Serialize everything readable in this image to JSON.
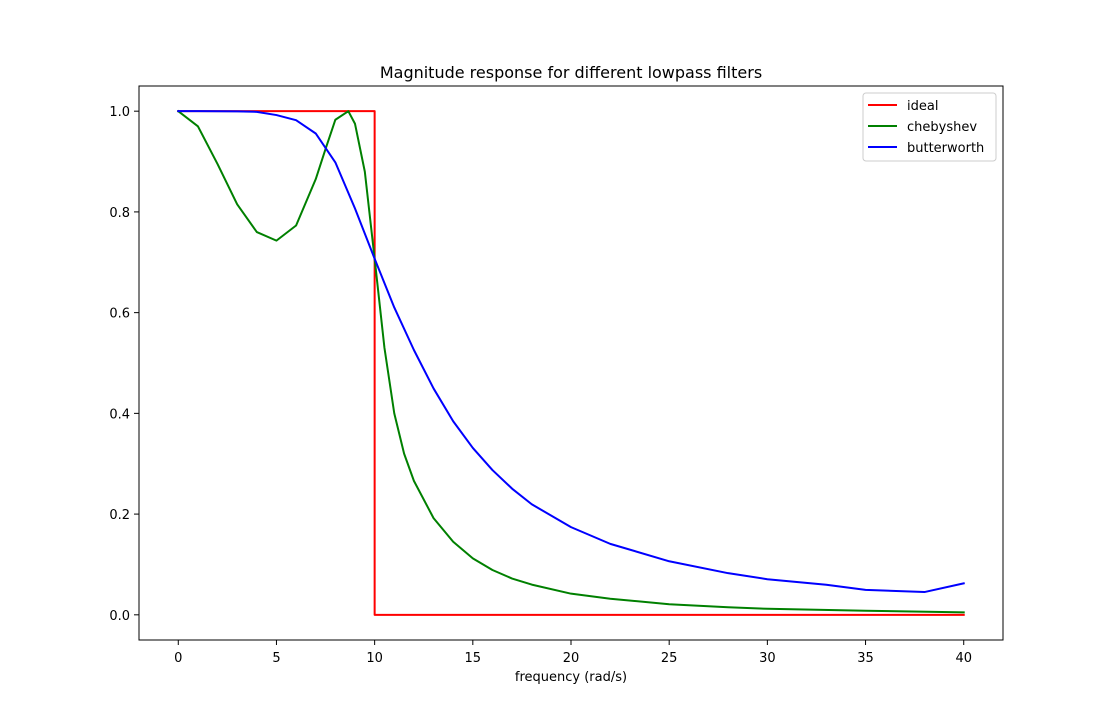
{
  "chart_data": {
    "type": "line",
    "title": "Magnitude response for different lowpass filters",
    "xlabel": "frequency (rad/s)",
    "ylabel": "",
    "xlim": [
      -2,
      42
    ],
    "ylim": [
      -0.05,
      1.05
    ],
    "xticks": [
      0,
      5,
      10,
      15,
      20,
      25,
      30,
      35,
      40
    ],
    "xtick_labels": [
      "0",
      "5",
      "10",
      "15",
      "20",
      "25",
      "30",
      "35",
      "40"
    ],
    "yticks": [
      0.0,
      0.2,
      0.4,
      0.6,
      0.8,
      1.0
    ],
    "ytick_labels": [
      "0.0",
      "0.2",
      "0.4",
      "0.6",
      "0.8",
      "1.0"
    ],
    "grid": false,
    "legend_position": "top-right",
    "series": [
      {
        "name": "ideal",
        "color": "#ff0000",
        "x": [
          0,
          10,
          10,
          40
        ],
        "y": [
          1.0,
          1.0,
          0.0,
          0.0
        ]
      },
      {
        "name": "chebyshev",
        "color": "#008000",
        "x": [
          0,
          1,
          2,
          3,
          4,
          5,
          6,
          7,
          7.5,
          8,
          8.66,
          9,
          9.5,
          10,
          10.5,
          11,
          11.5,
          12,
          13,
          14,
          15,
          16,
          17,
          18,
          20,
          22,
          25,
          28,
          30,
          35,
          40
        ],
        "y": [
          1.0,
          0.97,
          0.895,
          0.815,
          0.76,
          0.743,
          0.773,
          0.865,
          0.925,
          0.983,
          1.0,
          0.975,
          0.88,
          0.707,
          0.53,
          0.4,
          0.32,
          0.266,
          0.192,
          0.145,
          0.112,
          0.089,
          0.072,
          0.06,
          0.042,
          0.032,
          0.021,
          0.015,
          0.012,
          0.008,
          0.005
        ]
      },
      {
        "name": "butterworth",
        "color": "#0000ff",
        "x": [
          0,
          1,
          2,
          3,
          4,
          5,
          6,
          7,
          8,
          9,
          10,
          11,
          12,
          13,
          14,
          15,
          16,
          17,
          18,
          20,
          22,
          25,
          28,
          30,
          33,
          35,
          38,
          40
        ],
        "y": [
          1.0,
          1.0,
          0.9999,
          0.9996,
          0.9987,
          0.9923,
          0.9821,
          0.9557,
          0.8983,
          0.8067,
          0.707,
          0.6103,
          0.5258,
          0.4495,
          0.3843,
          0.3313,
          0.2874,
          0.2505,
          0.2195,
          0.1741,
          0.1409,
          0.1063,
          0.0827,
          0.0707,
          0.0597,
          0.0495,
          0.0452,
          0.0625
        ]
      }
    ]
  }
}
